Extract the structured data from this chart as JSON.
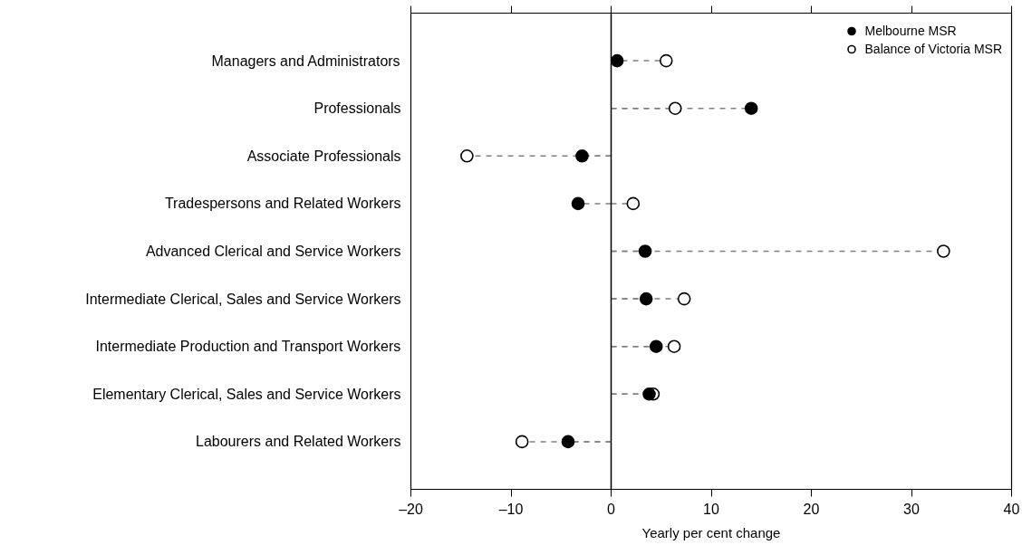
{
  "chart_data": {
    "type": "lollipop",
    "orientation": "horizontal",
    "xlabel": "Yearly per cent change",
    "categories": [
      "Managers and Administrators",
      "Professionals",
      "Associate Professionals",
      "Tradespersons and Related Workers",
      "Advanced Clerical and Service Workers",
      "Intermediate Clerical, Sales and Service Workers",
      "Intermediate Production and Transport Workers",
      "Elementary Clerical, Sales and Service Workers",
      "Labourers and Related Workers"
    ],
    "series": [
      {
        "name": "Melbourne MSR",
        "color": "#000000",
        "values": [
          0.6,
          14.0,
          -2.9,
          -3.3,
          3.4,
          3.5,
          4.5,
          3.8,
          -4.3
        ]
      },
      {
        "name": "Balance of Victoria MSR",
        "color": "#ffffff",
        "values": [
          5.5,
          6.4,
          -14.4,
          2.2,
          33.2,
          7.3,
          6.3,
          4.2,
          -8.9
        ]
      }
    ],
    "xlim": [
      -20,
      40
    ],
    "xticks": [
      {
        "value": -20,
        "label": "–20"
      },
      {
        "value": -10,
        "label": "–10"
      },
      0,
      10,
      20,
      30,
      40
    ],
    "ref_lines": [
      {
        "axis": "x",
        "value": 0,
        "color": "#000000"
      }
    ],
    "line_style": "dashed",
    "marker": "circle",
    "grid": false,
    "legend": "top right"
  }
}
